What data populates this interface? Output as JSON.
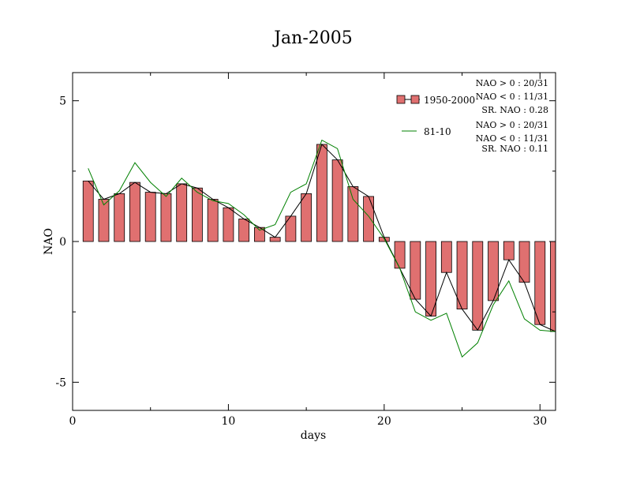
{
  "chart_data": {
    "type": "bar",
    "title": "Jan-2005",
    "xlabel": "days",
    "ylabel": "NAO",
    "xlim": [
      0,
      31
    ],
    "ylim": [
      -6,
      6
    ],
    "xticks": [
      0,
      10,
      20,
      30
    ],
    "xtick_labels": [
      "0",
      "10",
      "20",
      "30"
    ],
    "yticks": [
      -5,
      0,
      5
    ],
    "ytick_labels": [
      "-5",
      "0",
      "5"
    ],
    "grid": false,
    "legend_position": "top-right",
    "x": [
      1,
      2,
      3,
      4,
      5,
      6,
      7,
      8,
      9,
      10,
      11,
      12,
      13,
      14,
      15,
      16,
      17,
      18,
      19,
      20,
      21,
      22,
      23,
      24,
      25,
      26,
      27,
      28,
      29,
      30,
      31
    ],
    "series": [
      {
        "name": "1950-2000",
        "render": "bar+line",
        "bar_color": "#e07070",
        "line_color": "#000000",
        "values": [
          2.15,
          1.5,
          1.7,
          2.1,
          1.75,
          1.7,
          2.05,
          1.9,
          1.5,
          1.2,
          0.8,
          0.5,
          0.15,
          0.9,
          1.7,
          3.45,
          2.9,
          1.95,
          1.6,
          0.15,
          -0.95,
          -2.05,
          -2.65,
          -1.1,
          -2.4,
          -3.15,
          -2.1,
          -0.65,
          -1.45,
          -2.95,
          -3.2
        ]
      },
      {
        "name": "81-10",
        "render": "line",
        "line_color": "#008000",
        "values": [
          2.6,
          1.3,
          1.8,
          2.8,
          2.1,
          1.6,
          2.25,
          1.75,
          1.45,
          1.35,
          0.95,
          0.4,
          0.6,
          1.75,
          2.05,
          3.6,
          3.3,
          1.5,
          0.9,
          0.1,
          -0.95,
          -2.5,
          -2.8,
          -2.55,
          -4.1,
          -3.6,
          -2.25,
          -1.4,
          -2.75,
          -3.15,
          -3.2
        ]
      }
    ],
    "annotations": {
      "group_1": [
        "NAO > 0 : 20/31",
        "NAO < 0 : 11/31",
        "SR. NAO :  0.28"
      ],
      "group_2": [
        "NAO > 0 : 20/31",
        "NAO < 0 : 11/31",
        "SR. NAO :  0.11"
      ]
    }
  }
}
